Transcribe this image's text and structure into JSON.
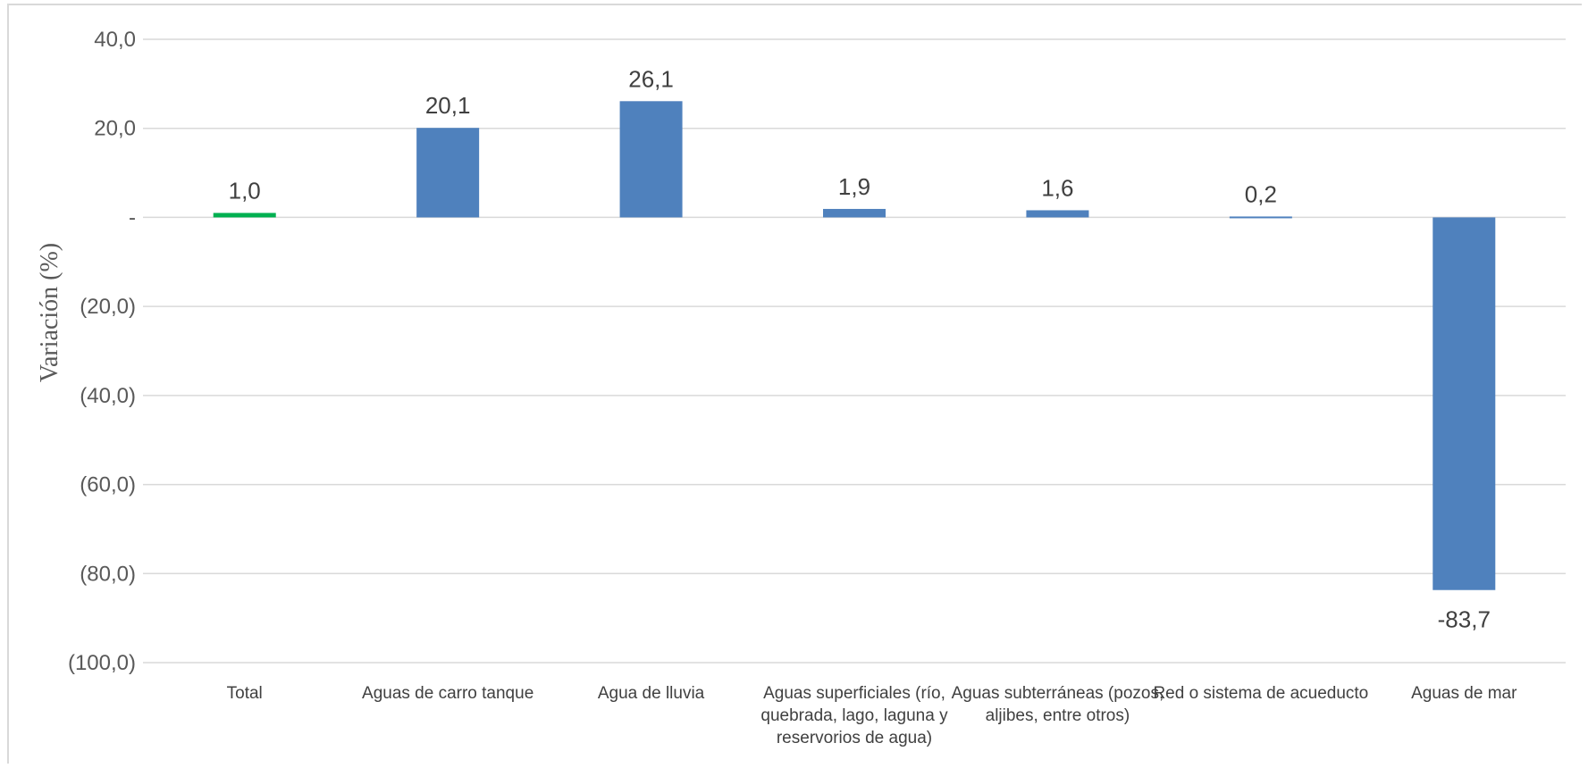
{
  "chart_data": {
    "type": "bar",
    "title": "",
    "xlabel": "",
    "ylabel": "Variación (%)",
    "ylim": [
      -100,
      40
    ],
    "yticks": [
      40,
      20,
      0,
      -20,
      -40,
      -60,
      -80,
      -100
    ],
    "ytick_labels": [
      "40,0",
      "20,0",
      "-",
      "(20,0)",
      "(40,0)",
      "(60,0)",
      "(80,0)",
      "(100,0)"
    ],
    "grid": true,
    "legend": "none",
    "categories": [
      [
        "Total"
      ],
      [
        "Aguas de carro tanque"
      ],
      [
        "Agua de lluvia"
      ],
      [
        "Aguas superficiales  (río,",
        "quebrada, lago, laguna y",
        "reservorios de agua)"
      ],
      [
        "Aguas subterráneas  (pozos,",
        "aljibes, entre otros)"
      ],
      [
        "Red o sistema de acueducto"
      ],
      [
        "Aguas de mar"
      ]
    ],
    "values": [
      1.0,
      20.1,
      26.1,
      1.9,
      1.6,
      0.2,
      -83.7
    ],
    "data_labels": [
      "1,0",
      "20,1",
      "26,1",
      "1,9",
      "1,6",
      "0,2",
      "-83,7"
    ],
    "colors": [
      "#00b050",
      "#4f81bd",
      "#4f81bd",
      "#4f81bd",
      "#4f81bd",
      "#4f81bd",
      "#4f81bd"
    ]
  }
}
